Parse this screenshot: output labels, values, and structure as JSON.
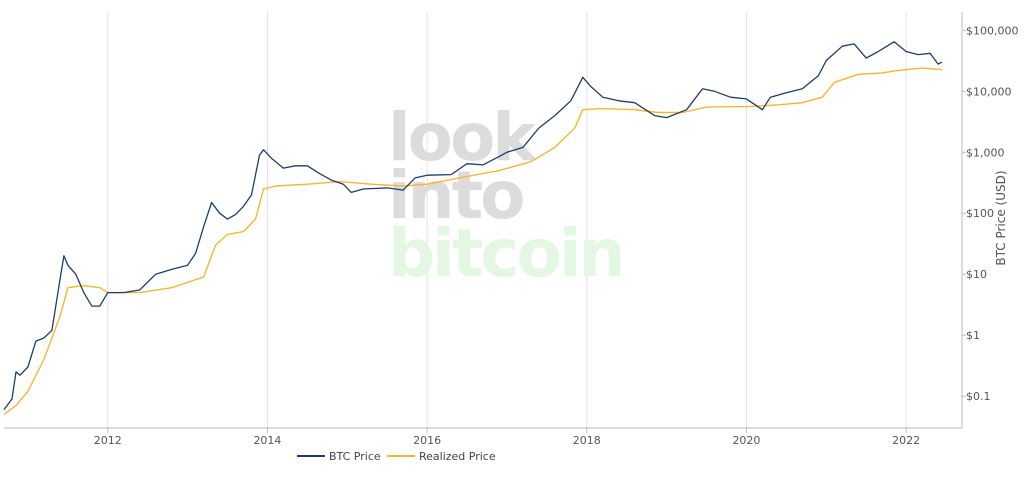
{
  "watermark": {
    "lines": [
      "look",
      "into",
      "bitcoin"
    ],
    "colors": [
      "#dcdcdc",
      "#dcdcdc",
      "#e3f7e3"
    ]
  },
  "chart_data": {
    "type": "line",
    "ylabel": "BTC Price (USD)",
    "xlabel": "",
    "yscale": "log",
    "ylim": [
      0.03,
      200000
    ],
    "xlim": [
      2010.7,
      2022.7
    ],
    "grid": {
      "x": true,
      "y": false
    },
    "legend_position": "bottom-center",
    "x_ticks": [
      2012,
      2014,
      2016,
      2018,
      2020,
      2022
    ],
    "y_ticks": [
      {
        "value": 0.1,
        "label": "$0.1"
      },
      {
        "value": 1,
        "label": "$1"
      },
      {
        "value": 10,
        "label": "$10"
      },
      {
        "value": 100,
        "label": "$100"
      },
      {
        "value": 1000,
        "label": "$1,000"
      },
      {
        "value": 10000,
        "label": "$10,000"
      },
      {
        "value": 100000,
        "label": "$100,000"
      }
    ],
    "series": [
      {
        "name": "BTC Price",
        "color": "#1f3c6b",
        "points": [
          [
            2010.7,
            0.06
          ],
          [
            2010.8,
            0.09
          ],
          [
            2010.85,
            0.25
          ],
          [
            2010.9,
            0.22
          ],
          [
            2011.0,
            0.3
          ],
          [
            2011.1,
            0.8
          ],
          [
            2011.2,
            0.9
          ],
          [
            2011.3,
            1.2
          ],
          [
            2011.4,
            8.0
          ],
          [
            2011.45,
            20
          ],
          [
            2011.5,
            14
          ],
          [
            2011.6,
            10
          ],
          [
            2011.7,
            5
          ],
          [
            2011.8,
            3
          ],
          [
            2011.9,
            3.0
          ],
          [
            2012.0,
            5
          ],
          [
            2012.2,
            5
          ],
          [
            2012.4,
            5.5
          ],
          [
            2012.6,
            10
          ],
          [
            2012.8,
            12
          ],
          [
            2013.0,
            14
          ],
          [
            2013.1,
            22
          ],
          [
            2013.2,
            60
          ],
          [
            2013.3,
            150
          ],
          [
            2013.4,
            100
          ],
          [
            2013.5,
            80
          ],
          [
            2013.6,
            95
          ],
          [
            2013.7,
            130
          ],
          [
            2013.8,
            200
          ],
          [
            2013.9,
            900
          ],
          [
            2013.95,
            1100
          ],
          [
            2014.05,
            800
          ],
          [
            2014.2,
            550
          ],
          [
            2014.35,
            600
          ],
          [
            2014.5,
            600
          ],
          [
            2014.65,
            450
          ],
          [
            2014.8,
            350
          ],
          [
            2014.95,
            300
          ],
          [
            2015.05,
            220
          ],
          [
            2015.2,
            250
          ],
          [
            2015.5,
            260
          ],
          [
            2015.7,
            240
          ],
          [
            2015.85,
            380
          ],
          [
            2016.0,
            420
          ],
          [
            2016.3,
            430
          ],
          [
            2016.5,
            650
          ],
          [
            2016.7,
            620
          ],
          [
            2016.9,
            850
          ],
          [
            2017.0,
            1000
          ],
          [
            2017.2,
            1200
          ],
          [
            2017.4,
            2500
          ],
          [
            2017.6,
            4000
          ],
          [
            2017.8,
            7000
          ],
          [
            2017.95,
            17000
          ],
          [
            2018.05,
            12000
          ],
          [
            2018.2,
            8000
          ],
          [
            2018.4,
            7000
          ],
          [
            2018.6,
            6500
          ],
          [
            2018.85,
            4000
          ],
          [
            2019.0,
            3700
          ],
          [
            2019.25,
            5000
          ],
          [
            2019.45,
            11000
          ],
          [
            2019.6,
            10000
          ],
          [
            2019.8,
            8000
          ],
          [
            2020.0,
            7500
          ],
          [
            2020.2,
            5000
          ],
          [
            2020.3,
            8000
          ],
          [
            2020.5,
            9500
          ],
          [
            2020.7,
            11000
          ],
          [
            2020.9,
            18000
          ],
          [
            2021.0,
            32000
          ],
          [
            2021.2,
            55000
          ],
          [
            2021.35,
            60000
          ],
          [
            2021.5,
            35000
          ],
          [
            2021.65,
            45000
          ],
          [
            2021.85,
            65000
          ],
          [
            2022.0,
            45000
          ],
          [
            2022.15,
            40000
          ],
          [
            2022.3,
            42000
          ],
          [
            2022.4,
            28000
          ],
          [
            2022.45,
            30000
          ]
        ]
      },
      {
        "name": "Realized Price",
        "color": "#f5b731",
        "points": [
          [
            2010.7,
            0.05
          ],
          [
            2010.85,
            0.07
          ],
          [
            2011.0,
            0.12
          ],
          [
            2011.2,
            0.4
          ],
          [
            2011.4,
            2
          ],
          [
            2011.5,
            6
          ],
          [
            2011.7,
            6.5
          ],
          [
            2011.9,
            6
          ],
          [
            2012.0,
            5
          ],
          [
            2012.4,
            5
          ],
          [
            2012.8,
            6
          ],
          [
            2013.2,
            9
          ],
          [
            2013.35,
            30
          ],
          [
            2013.5,
            45
          ],
          [
            2013.7,
            50
          ],
          [
            2013.85,
            80
          ],
          [
            2013.95,
            250
          ],
          [
            2014.1,
            280
          ],
          [
            2014.5,
            300
          ],
          [
            2014.9,
            330
          ],
          [
            2015.3,
            300
          ],
          [
            2015.7,
            280
          ],
          [
            2016.0,
            300
          ],
          [
            2016.5,
            400
          ],
          [
            2016.9,
            500
          ],
          [
            2017.3,
            700
          ],
          [
            2017.6,
            1200
          ],
          [
            2017.85,
            2500
          ],
          [
            2017.95,
            5000
          ],
          [
            2018.2,
            5200
          ],
          [
            2018.6,
            5000
          ],
          [
            2018.9,
            4500
          ],
          [
            2019.2,
            4500
          ],
          [
            2019.5,
            5500
          ],
          [
            2019.8,
            5600
          ],
          [
            2020.0,
            5600
          ],
          [
            2020.4,
            6000
          ],
          [
            2020.7,
            6500
          ],
          [
            2020.95,
            8000
          ],
          [
            2021.1,
            14000
          ],
          [
            2021.4,
            19000
          ],
          [
            2021.7,
            20000
          ],
          [
            2021.9,
            22000
          ],
          [
            2022.2,
            24000
          ],
          [
            2022.4,
            23000
          ],
          [
            2022.45,
            22500
          ]
        ]
      }
    ]
  }
}
